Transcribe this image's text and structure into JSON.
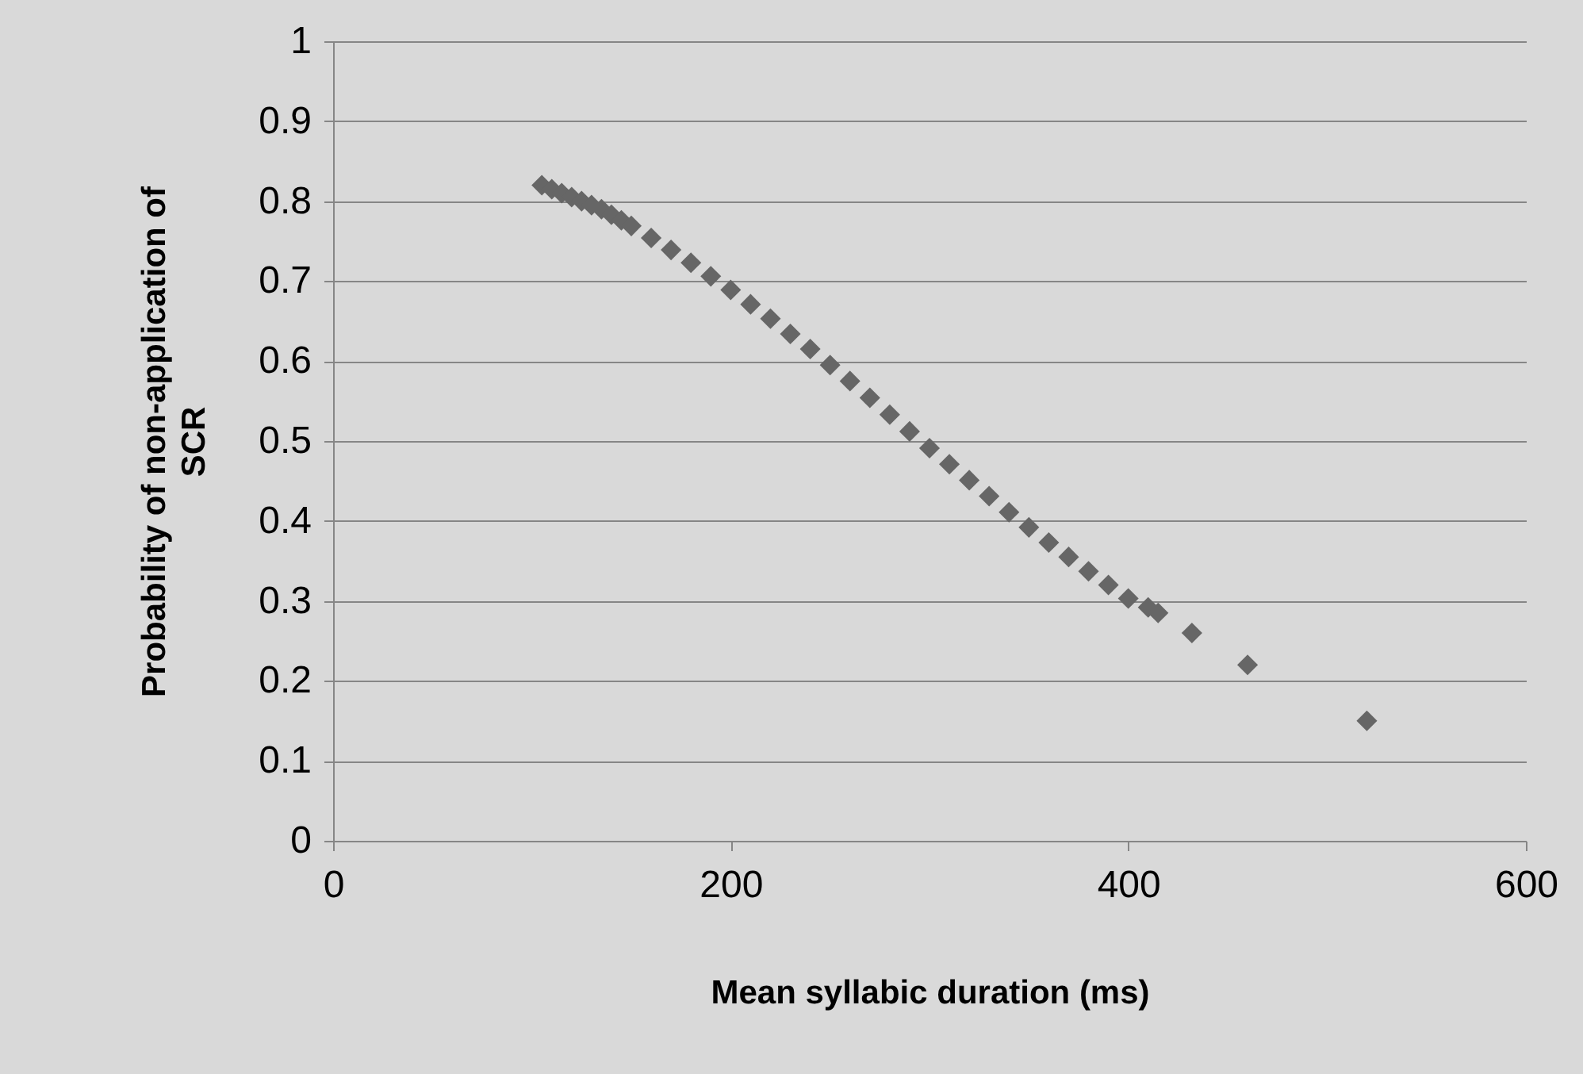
{
  "chart_data": {
    "type": "scatter",
    "xlabel": "Mean syllabic duration (ms)",
    "ylabel": "Probability of non-application of SCR",
    "x": [
      105,
      110,
      115,
      120,
      125,
      130,
      135,
      140,
      145,
      150,
      160,
      170,
      180,
      190,
      200,
      210,
      220,
      230,
      240,
      250,
      260,
      270,
      280,
      290,
      300,
      310,
      320,
      330,
      340,
      350,
      360,
      370,
      380,
      390,
      400,
      410,
      415,
      432,
      460,
      520
    ],
    "series": [
      {
        "color": "#666666",
        "values": [
          0.82,
          0.815,
          0.81,
          0.805,
          0.8,
          0.795,
          0.79,
          0.783,
          0.776,
          0.769,
          0.754,
          0.739,
          0.723,
          0.706,
          0.689,
          0.671,
          0.653,
          0.634,
          0.615,
          0.595,
          0.575,
          0.554,
          0.533,
          0.512,
          0.491,
          0.471,
          0.451,
          0.431,
          0.411,
          0.392,
          0.373,
          0.355,
          0.337,
          0.32,
          0.303,
          0.292,
          0.285,
          0.26,
          0.22,
          0.15
        ]
      }
    ],
    "xlim": [
      0,
      600
    ],
    "xticks": [
      0,
      200,
      400,
      600
    ],
    "ylim": [
      0,
      1
    ],
    "yticks": [
      0,
      0.1,
      0.2,
      0.3,
      0.4,
      0.5,
      0.6,
      0.7,
      0.8,
      0.9,
      1
    ],
    "grid": "y",
    "legend": false,
    "marker": "diamond"
  }
}
